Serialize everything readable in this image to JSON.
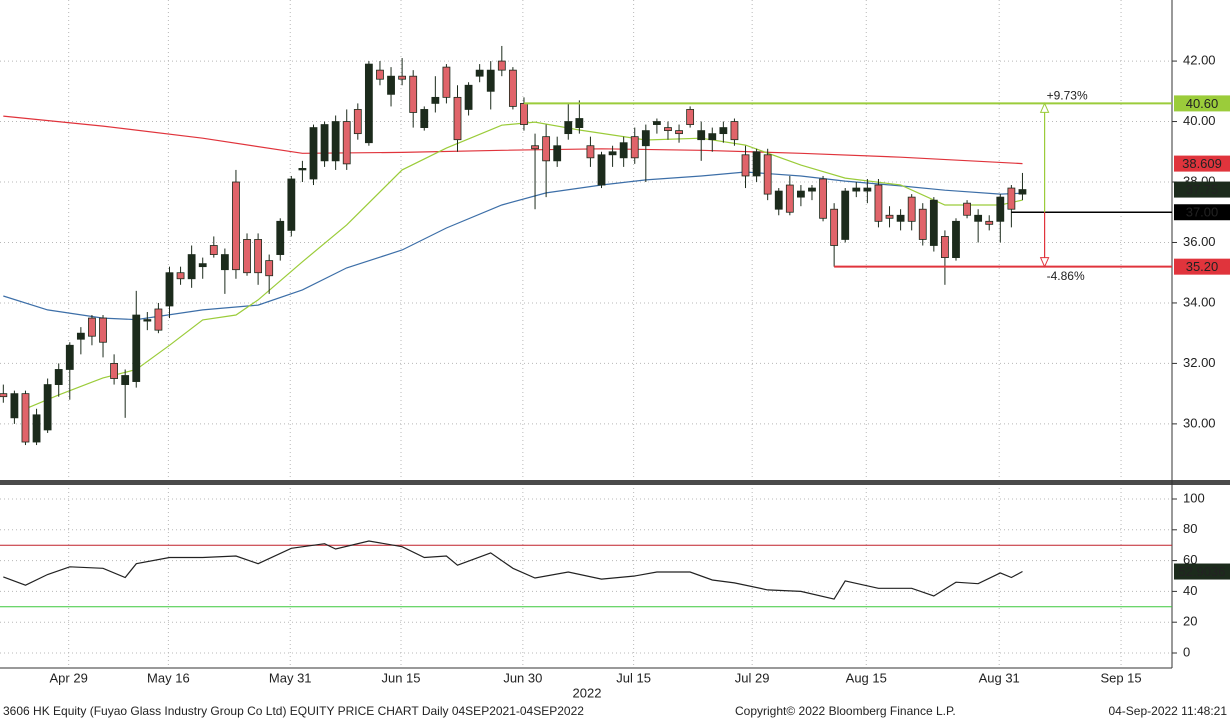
{
  "chart_data": [
    {
      "type": "candlestick",
      "xlim": [
        -0.3,
        105.5
      ],
      "ylim": [
        28.21,
        44.02
      ],
      "yticks": [
        {
          "value": 30,
          "label": "30.00"
        },
        {
          "value": 32,
          "label": "32.00"
        },
        {
          "value": 34,
          "label": "34.00"
        },
        {
          "value": 36,
          "label": "36.00"
        },
        {
          "value": 38,
          "label": "38.00"
        },
        {
          "value": 40,
          "label": "40.00"
        },
        {
          "value": 42,
          "label": "42.00"
        }
      ],
      "up_color": "#1c2b1c",
      "down_color": "#e0646a",
      "candles": [
        [
          31.0,
          31.3,
          30.7,
          30.9
        ],
        [
          30.2,
          31.1,
          30.0,
          31.0
        ],
        [
          31.0,
          31.1,
          29.3,
          29.4
        ],
        [
          29.4,
          30.5,
          29.3,
          30.3
        ],
        [
          29.8,
          31.5,
          29.7,
          31.3
        ],
        [
          31.3,
          32.0,
          30.9,
          31.8
        ],
        [
          31.8,
          32.7,
          30.8,
          32.6
        ],
        [
          32.8,
          33.2,
          32.3,
          33.0
        ],
        [
          33.5,
          33.6,
          32.6,
          32.9
        ],
        [
          33.5,
          33.6,
          32.2,
          32.7
        ],
        [
          32.0,
          32.3,
          31.3,
          31.5
        ],
        [
          31.3,
          31.8,
          30.2,
          31.6
        ],
        [
          31.4,
          34.4,
          31.2,
          33.6
        ],
        [
          33.4,
          33.7,
          33.1,
          33.45
        ],
        [
          33.8,
          34.0,
          33.0,
          33.1
        ],
        [
          33.9,
          35.2,
          33.5,
          35.0
        ],
        [
          35.0,
          35.2,
          34.6,
          34.8
        ],
        [
          34.8,
          35.9,
          34.5,
          35.6
        ],
        [
          35.2,
          35.5,
          34.8,
          35.3
        ],
        [
          35.9,
          36.2,
          35.5,
          35.6
        ],
        [
          35.1,
          35.8,
          34.3,
          35.6
        ],
        [
          38.0,
          38.4,
          34.8,
          35.1
        ],
        [
          36.1,
          36.3,
          34.9,
          35.0
        ],
        [
          36.1,
          36.3,
          34.6,
          35.0
        ],
        [
          35.4,
          35.6,
          34.3,
          34.9
        ],
        [
          35.6,
          36.8,
          35.4,
          36.7
        ],
        [
          36.4,
          38.2,
          36.2,
          38.1
        ],
        [
          38.4,
          38.7,
          38.0,
          38.45
        ],
        [
          38.1,
          39.9,
          37.9,
          39.8
        ],
        [
          38.7,
          40.0,
          38.5,
          39.9
        ],
        [
          38.7,
          40.2,
          38.4,
          40.0
        ],
        [
          40.0,
          40.4,
          38.4,
          38.6
        ],
        [
          40.4,
          40.6,
          39.4,
          39.6
        ],
        [
          39.3,
          42.0,
          39.2,
          41.9
        ],
        [
          41.7,
          42.0,
          41.2,
          41.4
        ],
        [
          40.9,
          41.8,
          40.5,
          41.5
        ],
        [
          41.5,
          42.1,
          41.2,
          41.4
        ],
        [
          41.5,
          41.7,
          39.8,
          40.3
        ],
        [
          39.8,
          40.5,
          39.7,
          40.4
        ],
        [
          40.6,
          41.5,
          40.3,
          40.8
        ],
        [
          41.8,
          41.9,
          40.6,
          40.8
        ],
        [
          40.8,
          41.2,
          39.0,
          39.4
        ],
        [
          40.4,
          41.3,
          40.2,
          41.2
        ],
        [
          41.5,
          41.9,
          41.3,
          41.7
        ],
        [
          41.0,
          42.0,
          40.4,
          41.7
        ],
        [
          42.0,
          42.5,
          41.5,
          41.7
        ],
        [
          41.7,
          41.8,
          40.4,
          40.5
        ],
        [
          40.6,
          40.8,
          39.7,
          39.9
        ],
        [
          39.2,
          39.6,
          37.1,
          39.1
        ],
        [
          39.5,
          39.9,
          37.5,
          38.7
        ],
        [
          38.7,
          39.5,
          38.5,
          39.2
        ],
        [
          39.6,
          40.6,
          39.4,
          40.0
        ],
        [
          39.8,
          40.7,
          39.6,
          40.1
        ],
        [
          39.2,
          39.5,
          38.5,
          38.8
        ],
        [
          37.9,
          39.0,
          37.8,
          38.9
        ],
        [
          38.9,
          39.2,
          38.5,
          39.0
        ],
        [
          38.8,
          39.5,
          38.5,
          39.3
        ],
        [
          39.5,
          39.8,
          38.6,
          38.8
        ],
        [
          39.2,
          39.9,
          38.0,
          39.7
        ],
        [
          39.9,
          40.1,
          39.6,
          40.0
        ],
        [
          39.8,
          40.0,
          39.4,
          39.7
        ],
        [
          39.7,
          39.9,
          39.3,
          39.6
        ],
        [
          40.4,
          40.5,
          39.8,
          39.9
        ],
        [
          39.4,
          40.0,
          38.7,
          39.7
        ],
        [
          39.4,
          39.8,
          39.0,
          39.6
        ],
        [
          39.6,
          40.0,
          39.3,
          39.8
        ],
        [
          40.0,
          40.1,
          39.2,
          39.4
        ],
        [
          38.9,
          39.2,
          37.8,
          38.2
        ],
        [
          38.2,
          39.1,
          38.0,
          39.0
        ],
        [
          38.9,
          39.1,
          37.4,
          37.6
        ],
        [
          37.1,
          37.8,
          36.9,
          37.7
        ],
        [
          37.9,
          38.2,
          36.9,
          37.0
        ],
        [
          37.5,
          37.9,
          37.2,
          37.7
        ],
        [
          37.7,
          37.9,
          37.4,
          37.8
        ],
        [
          38.1,
          38.2,
          36.7,
          36.8
        ],
        [
          37.1,
          37.3,
          35.2,
          35.9
        ],
        [
          36.1,
          37.8,
          36.0,
          37.7
        ],
        [
          37.7,
          38.0,
          37.5,
          37.8
        ],
        [
          37.7,
          38.1,
          37.3,
          37.8
        ],
        [
          37.9,
          38.1,
          36.5,
          36.7
        ],
        [
          36.9,
          37.2,
          36.5,
          36.8
        ],
        [
          36.7,
          37.1,
          36.4,
          36.9
        ],
        [
          37.5,
          37.6,
          36.4,
          36.7
        ],
        [
          37.1,
          37.3,
          35.9,
          36.1
        ],
        [
          35.9,
          37.5,
          35.7,
          37.4
        ],
        [
          36.2,
          36.4,
          34.6,
          35.5
        ],
        [
          35.5,
          36.8,
          35.4,
          36.7
        ],
        [
          37.3,
          37.4,
          36.8,
          36.9
        ],
        [
          36.7,
          37.1,
          36.0,
          36.9
        ],
        [
          36.7,
          36.9,
          36.4,
          36.6
        ],
        [
          36.7,
          37.6,
          36.0,
          37.5
        ],
        [
          37.8,
          37.9,
          36.5,
          37.1
        ],
        [
          37.6,
          38.3,
          37.4,
          37.75
        ]
      ],
      "series": [
        {
          "color": "#e0343c",
          "x": [
            0,
            9,
            18,
            27,
            36,
            45,
            54,
            63,
            72,
            81,
            92
          ],
          "values": [
            40.18,
            39.85,
            39.45,
            38.95,
            38.98,
            39.05,
            39.1,
            39.05,
            38.95,
            38.82,
            38.609
          ]
        },
        {
          "color": "#3d6fa8",
          "x": [
            0,
            4,
            9,
            12,
            18,
            23,
            27,
            31,
            36,
            40,
            45,
            49,
            54,
            58,
            63,
            67,
            72,
            76,
            81,
            85,
            90,
            92
          ],
          "values": [
            34.23,
            33.77,
            33.5,
            33.45,
            33.77,
            33.93,
            34.43,
            35.16,
            35.75,
            36.48,
            37.24,
            37.64,
            37.9,
            38.07,
            38.2,
            38.33,
            38.2,
            38.03,
            37.87,
            37.73,
            37.6,
            37.63
          ]
        },
        {
          "color": "#9bcc3a",
          "x": [
            2,
            5,
            9,
            12,
            15,
            18,
            21,
            23,
            27,
            31,
            36,
            40,
            45,
            48,
            52,
            58,
            63,
            67,
            72,
            76,
            81,
            85,
            90,
            92
          ],
          "values": [
            30.5,
            30.96,
            31.52,
            31.8,
            32.6,
            33.44,
            33.6,
            34.1,
            35.36,
            36.58,
            38.4,
            39.12,
            39.88,
            39.98,
            39.72,
            39.39,
            39.45,
            39.22,
            38.56,
            38.13,
            37.9,
            37.24,
            37.24,
            37.4
          ]
        }
      ],
      "base_level": {
        "value": 37,
        "label": "37.00",
        "color": "#000000",
        "x_start": 91
      },
      "arrow_x": 94,
      "levels": [
        {
          "value": 40.6,
          "label": "40.60",
          "change": "+9.73%",
          "color": "#9bcc3a",
          "x_start": 47
        },
        {
          "value": 35.2,
          "label": "35.20",
          "change": "-4.86%",
          "color": "#e0343c",
          "x_start": 75
        }
      ]
    },
    {
      "type": "line",
      "xlim": [
        -0.3,
        105.5
      ],
      "ylim": [
        -9.74,
        107.14
      ],
      "yticks": [
        0,
        20,
        40,
        60,
        80,
        100
      ],
      "xticks": [
        {
          "value": 5.9,
          "label": "Apr 29"
        },
        {
          "value": 14.9,
          "label": "May 16"
        },
        {
          "value": 25.9,
          "label": "May 31"
        },
        {
          "value": 35.9,
          "label": "Jun 15"
        },
        {
          "value": 46.9,
          "label": "Jun 30"
        },
        {
          "value": 56.9,
          "label": "Jul 15"
        },
        {
          "value": 67.6,
          "label": "Jul 29"
        },
        {
          "value": 77.9,
          "label": "Aug 15"
        },
        {
          "value": 89.9,
          "label": "Aug 31"
        },
        {
          "value": 100.9,
          "label": "Sep 15"
        }
      ],
      "x_period": "2022",
      "hlines": [
        {
          "value": 70,
          "color": "#c0202a"
        },
        {
          "value": 30,
          "color": "#3cc83c"
        }
      ],
      "series": [
        {
          "color": "#222222",
          "x": [
            0,
            2,
            4,
            6,
            9,
            11,
            12,
            15,
            18,
            21,
            23,
            26,
            29,
            30,
            33,
            36,
            38,
            40,
            41,
            44,
            46,
            48,
            51,
            54,
            57,
            59,
            62,
            64,
            66,
            69,
            72,
            75,
            76,
            79,
            82,
            84,
            86,
            88,
            90,
            91,
            92
          ],
          "values": [
            49.4,
            44,
            51,
            56,
            55,
            49,
            58,
            62,
            62,
            63,
            58,
            68,
            71,
            67.5,
            72.7,
            69,
            62,
            63,
            57,
            65,
            55,
            48.7,
            52.6,
            48,
            50,
            52.6,
            52.6,
            47.4,
            45.5,
            41,
            40,
            35,
            46.8,
            42,
            42,
            37,
            46,
            45,
            52,
            49,
            52.9036
          ]
        }
      ]
    }
  ],
  "footer": {
    "left": "3606 HK Equity (Fuyao Glass Industry Group Co Ltd) EQUITY PRICE CHART  Daily 04SEP2021-04SEP2022",
    "center": "Copyright© 2022 Bloomberg Finance L.P.",
    "right": "04-Sep-2022 11:48:21"
  }
}
